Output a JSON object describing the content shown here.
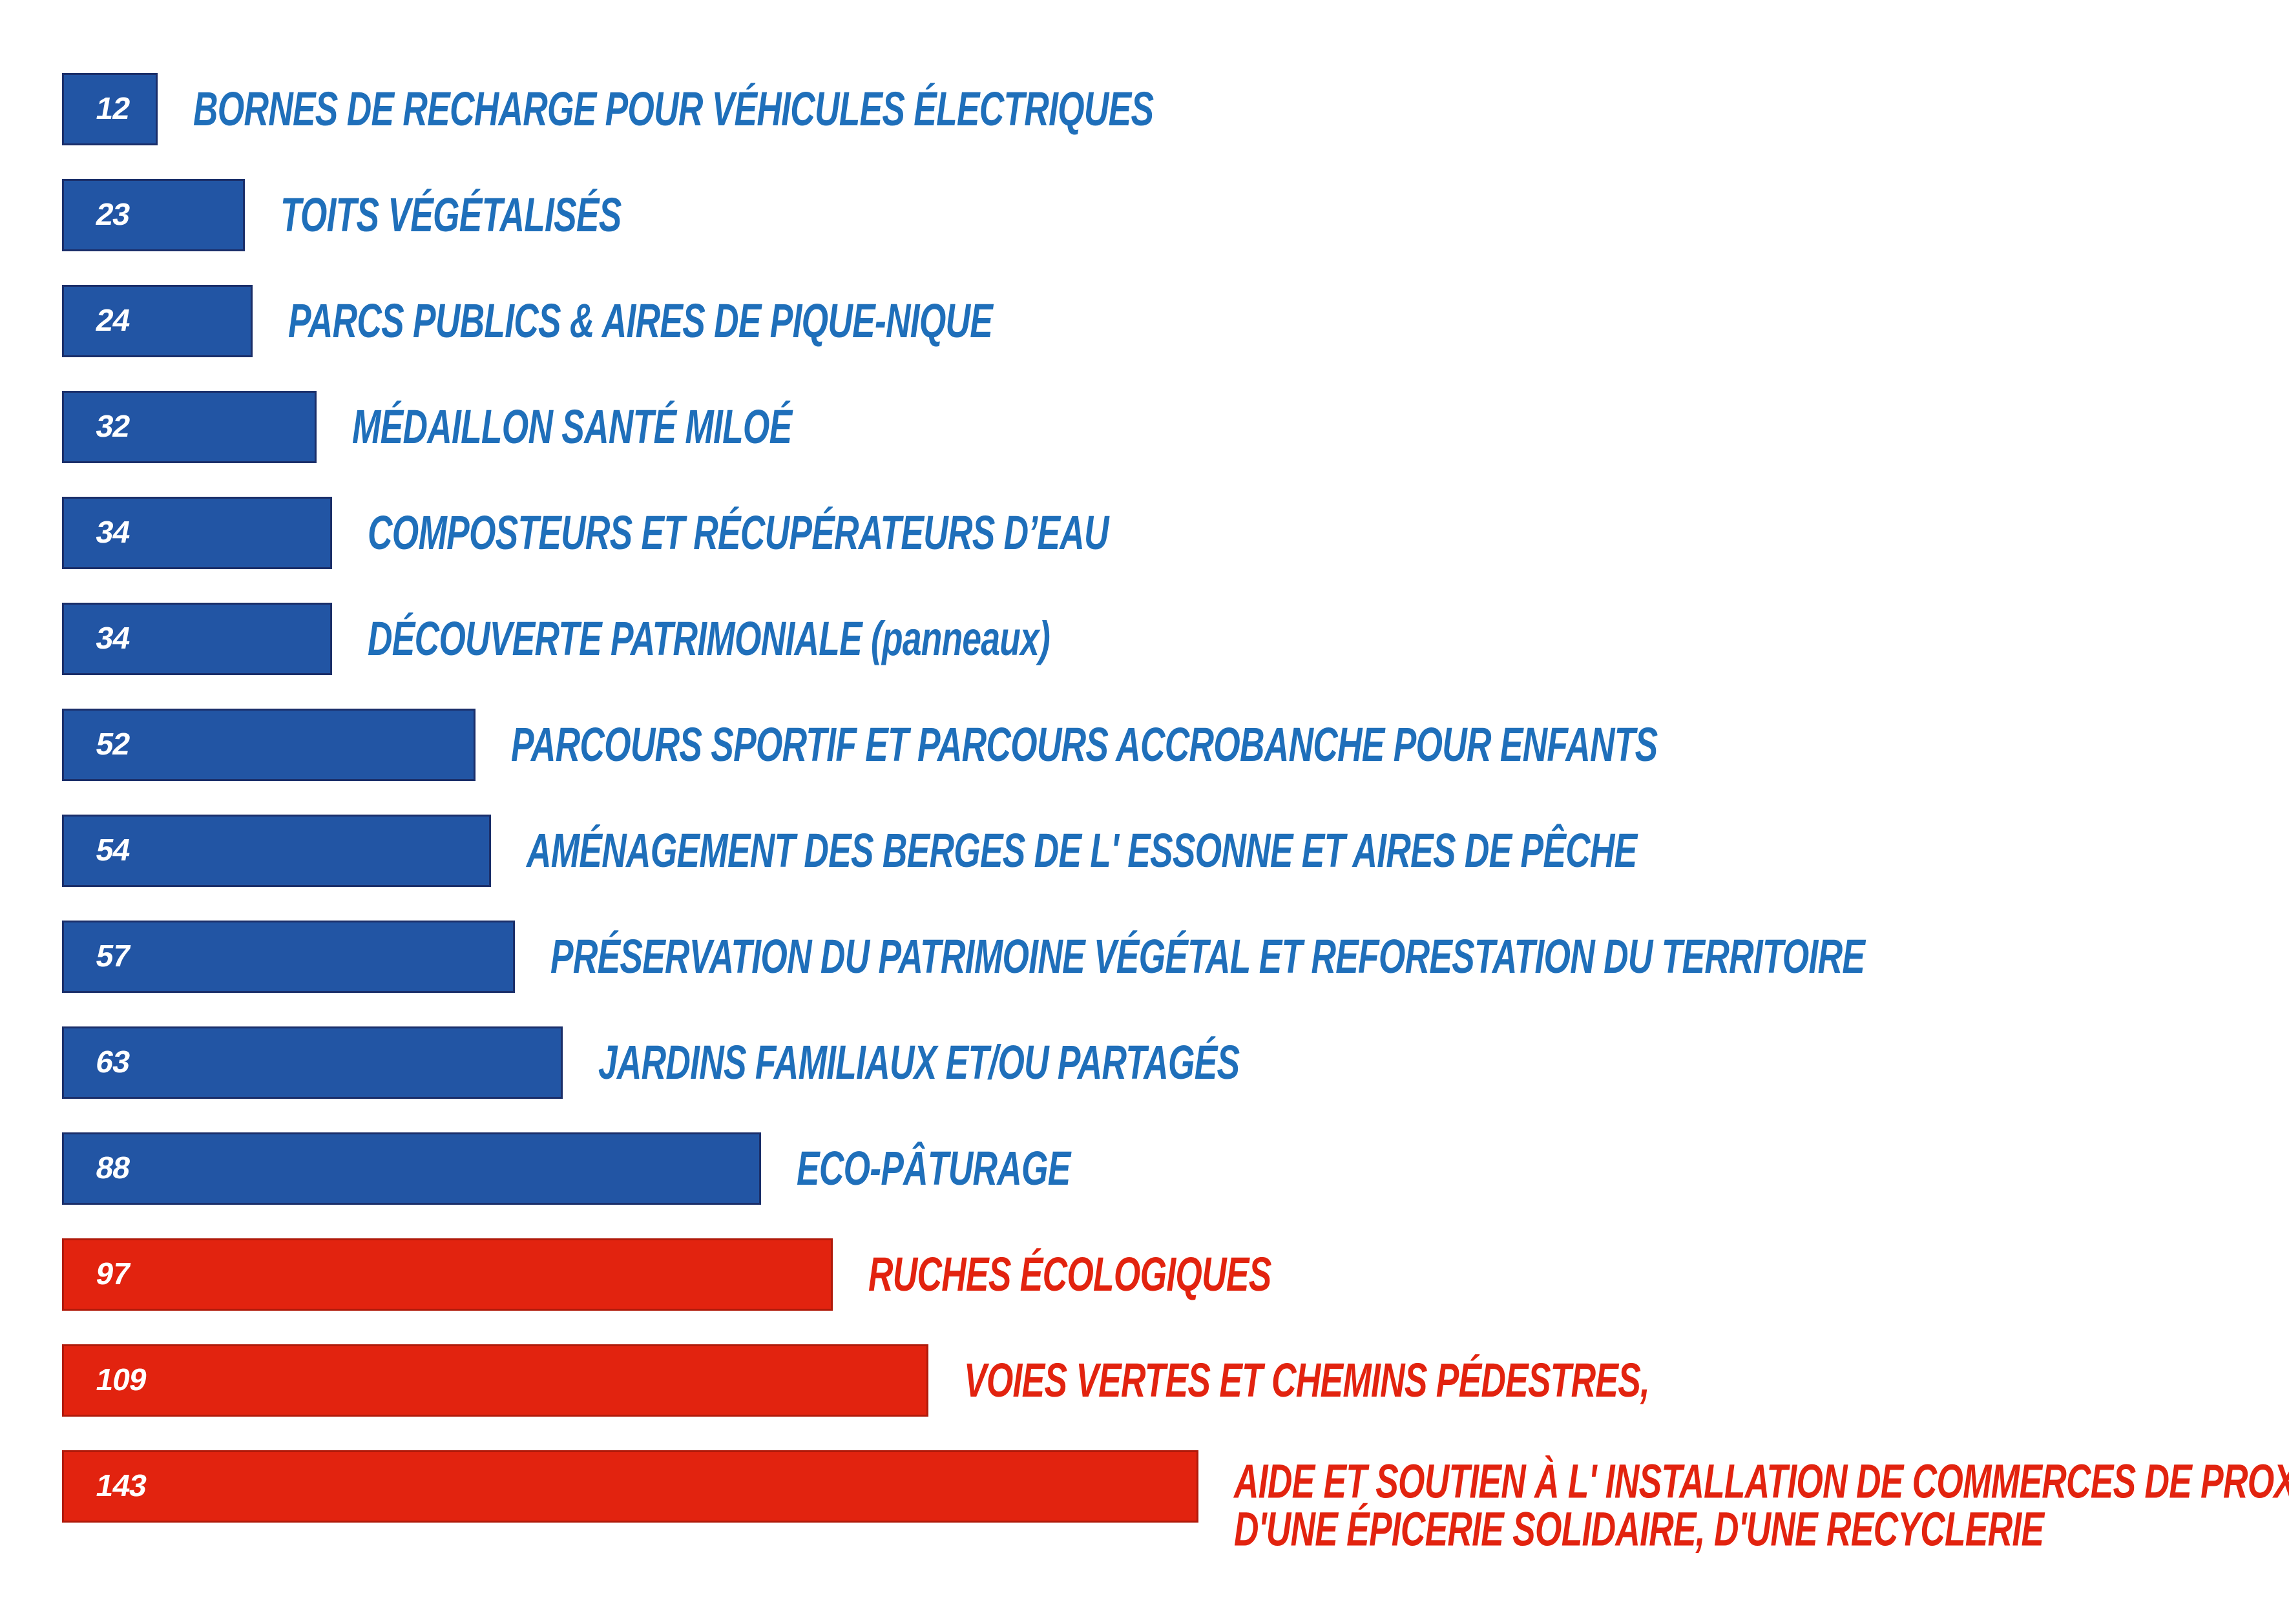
{
  "chart_data": {
    "type": "bar",
    "orientation": "horizontal",
    "title": "",
    "xlabel": "",
    "ylabel": "",
    "xlim": [
      0,
      143
    ],
    "grid": false,
    "legend": "none",
    "colors": {
      "blue": "#2255a4",
      "red": "#e2230f",
      "label_blue": "#1f6fba"
    },
    "bars": [
      {
        "value": 12,
        "label": "BORNES DE RECHARGE POUR VÉHICULES ÉLECTRIQUES",
        "color": "blue"
      },
      {
        "value": 23,
        "label": "TOITS VÉGÉTALISÉS",
        "color": "blue"
      },
      {
        "value": 24,
        "label": "PARCS PUBLICS & AIRES DE PIQUE-NIQUE",
        "color": "blue"
      },
      {
        "value": 32,
        "label": "MÉDAILLON SANTÉ MILOÉ",
        "color": "blue"
      },
      {
        "value": 34,
        "label": "COMPOSTEURS ET RÉCUPÉRATEURS D’EAU",
        "color": "blue"
      },
      {
        "value": 34,
        "label": "DÉCOUVERTE PATRIMONIALE (panneaux)",
        "color": "blue"
      },
      {
        "value": 52,
        "label": "PARCOURS SPORTIF ET PARCOURS ACCROBANCHE POUR ENFANTS",
        "color": "blue"
      },
      {
        "value": 54,
        "label": "AMÉNAGEMENT DES BERGES DE L' ESSONNE ET AIRES DE PÊCHE",
        "color": "blue"
      },
      {
        "value": 57,
        "label": "PRÉSERVATION DU PATRIMOINE VÉGÉTAL ET REFORESTATION DU TERRITOIRE",
        "color": "blue"
      },
      {
        "value": 63,
        "label": "JARDINS FAMILIAUX ET/OU PARTAGÉS",
        "color": "blue"
      },
      {
        "value": 88,
        "label": "ECO-PÂTURAGE",
        "color": "blue"
      },
      {
        "value": 97,
        "label": "RUCHES ÉCOLOGIQUES",
        "color": "red"
      },
      {
        "value": 109,
        "label": "VOIES VERTES ET CHEMINS PÉDESTRES,",
        "color": "red"
      },
      {
        "value": 143,
        "label": "AIDE ET SOUTIEN À L' INSTALLATION DE COMMERCES DE PROXIMITÉ,",
        "label_line2": "D'UNE ÉPICERIE SOLIDAIRE, D'UNE RECYCLERIE",
        "color": "red"
      }
    ]
  }
}
